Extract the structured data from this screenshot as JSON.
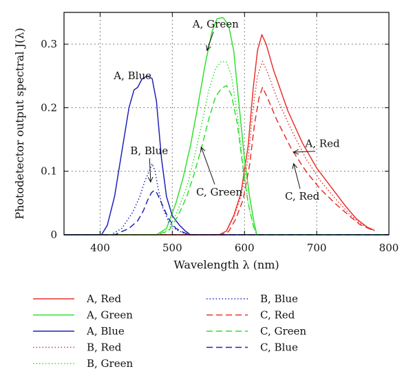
{
  "chart_data": {
    "type": "line",
    "title": "",
    "xlabel": "Wavelength λ (nm)",
    "ylabel": "Photodetector output spectral J(λ)",
    "xlim": [
      350,
      800
    ],
    "ylim": [
      0,
      0.35
    ],
    "x_ticks": [
      400,
      500,
      600,
      700,
      800
    ],
    "y_ticks": [
      0,
      0.1,
      0.2,
      0.3
    ],
    "y_tick_labels": [
      "0",
      "0.1",
      "0.2",
      "0.3"
    ],
    "grid": "dotted",
    "legend_placement": "bottom",
    "series": [
      {
        "name": "A, Red",
        "color": "#e8312b",
        "style": "solid",
        "x": [
          350,
          565,
          575,
          585,
          595,
          605,
          612,
          618,
          624,
          630,
          640,
          660,
          680,
          700,
          720,
          740,
          755,
          770,
          780
        ],
        "y": [
          0,
          0,
          0.006,
          0.03,
          0.065,
          0.14,
          0.23,
          0.29,
          0.315,
          0.3,
          0.26,
          0.195,
          0.145,
          0.105,
          0.075,
          0.045,
          0.025,
          0.012,
          0.007
        ]
      },
      {
        "name": "A, Green",
        "color": "#2ee02e",
        "style": "solid",
        "x": [
          350,
          478,
          492,
          505,
          515,
          525,
          535,
          545,
          555,
          562,
          570,
          578,
          585,
          592,
          600,
          607,
          613,
          617,
          800
        ],
        "y": [
          0,
          0,
          0.01,
          0.05,
          0.09,
          0.14,
          0.2,
          0.265,
          0.32,
          0.34,
          0.342,
          0.33,
          0.29,
          0.21,
          0.12,
          0.06,
          0.02,
          0,
          0
        ]
      },
      {
        "name": "A, Blue",
        "color": "#1c22b8",
        "style": "solid",
        "x": [
          350,
          402,
          410,
          420,
          430,
          440,
          447,
          452,
          458,
          465,
          472,
          478,
          485,
          492,
          500,
          510,
          518,
          525,
          800
        ],
        "y": [
          0,
          0,
          0.015,
          0.06,
          0.13,
          0.2,
          0.228,
          0.232,
          0.245,
          0.25,
          0.246,
          0.21,
          0.12,
          0.06,
          0.03,
          0.015,
          0.006,
          0,
          0
        ]
      },
      {
        "name": "B, Red",
        "color": "#e8312b",
        "style": "dotted",
        "x": [
          350,
          565,
          575,
          585,
          595,
          605,
          612,
          618,
          625,
          632,
          645,
          665,
          685,
          705,
          725,
          745,
          760,
          780
        ],
        "y": [
          0,
          0,
          0.006,
          0.028,
          0.06,
          0.12,
          0.2,
          0.25,
          0.273,
          0.255,
          0.215,
          0.165,
          0.12,
          0.085,
          0.058,
          0.033,
          0.018,
          0.006
        ]
      },
      {
        "name": "B, Green",
        "color": "#2ee02e",
        "style": "dotted",
        "x": [
          350,
          478,
          495,
          508,
          520,
          530,
          540,
          550,
          560,
          568,
          575,
          582,
          590,
          598,
          605,
          612,
          617,
          800
        ],
        "y": [
          0,
          0,
          0.008,
          0.04,
          0.075,
          0.12,
          0.17,
          0.225,
          0.262,
          0.273,
          0.272,
          0.25,
          0.19,
          0.11,
          0.05,
          0.015,
          0,
          0
        ]
      },
      {
        "name": "B, Blue",
        "color": "#1c22b8",
        "style": "dotted",
        "x": [
          350,
          415,
          430,
          445,
          455,
          462,
          468,
          472,
          476,
          480,
          486,
          495,
          505,
          515,
          522,
          800
        ],
        "y": [
          0,
          0,
          0.01,
          0.035,
          0.06,
          0.085,
          0.1,
          0.112,
          0.1,
          0.075,
          0.045,
          0.02,
          0.008,
          0.003,
          0,
          0
        ]
      },
      {
        "name": "C, Red",
        "color": "#e8312b",
        "style": "dashed",
        "x": [
          350,
          568,
          578,
          588,
          598,
          607,
          614,
          620,
          625,
          632,
          645,
          665,
          685,
          705,
          725,
          745,
          760,
          780
        ],
        "y": [
          0,
          0,
          0.005,
          0.025,
          0.055,
          0.11,
          0.175,
          0.215,
          0.232,
          0.215,
          0.18,
          0.135,
          0.1,
          0.072,
          0.05,
          0.03,
          0.016,
          0.006
        ]
      },
      {
        "name": "C, Green",
        "color": "#2ee02e",
        "style": "dashed",
        "x": [
          350,
          478,
          495,
          508,
          520,
          530,
          540,
          550,
          560,
          568,
          575,
          582,
          590,
          598,
          605,
          612,
          617,
          800
        ],
        "y": [
          0,
          0,
          0.006,
          0.03,
          0.06,
          0.095,
          0.135,
          0.18,
          0.218,
          0.23,
          0.235,
          0.22,
          0.175,
          0.105,
          0.05,
          0.015,
          0,
          0
        ]
      },
      {
        "name": "C, Blue",
        "color": "#1c22b8",
        "style": "dashed",
        "x": [
          350,
          420,
          440,
          452,
          460,
          466,
          471,
          475,
          479,
          485,
          495,
          505,
          515,
          523,
          800
        ],
        "y": [
          0,
          0,
          0.01,
          0.022,
          0.038,
          0.055,
          0.066,
          0.07,
          0.065,
          0.05,
          0.025,
          0.01,
          0.004,
          0,
          0
        ]
      }
    ],
    "annotations": [
      {
        "text": "A, Green",
        "x": 560,
        "y": 0.326,
        "arrow_x": 548,
        "arrow_y": 0.29
      },
      {
        "text": "A, Blue",
        "x": 445,
        "y": 0.245,
        "arrow_x": null,
        "arrow_y": null
      },
      {
        "text": "B, Blue",
        "x": 468,
        "y": 0.127,
        "arrow_x": 470,
        "arrow_y": 0.083
      },
      {
        "text": "A, Red",
        "x": 708,
        "y": 0.138,
        "arrow_x": 668,
        "arrow_y": 0.13
      },
      {
        "text": "C, Green",
        "x": 565,
        "y": 0.062,
        "arrow_x": 540,
        "arrow_y": 0.138
      },
      {
        "text": "C, Red",
        "x": 680,
        "y": 0.055,
        "arrow_x": 668,
        "arrow_y": 0.112
      }
    ]
  }
}
